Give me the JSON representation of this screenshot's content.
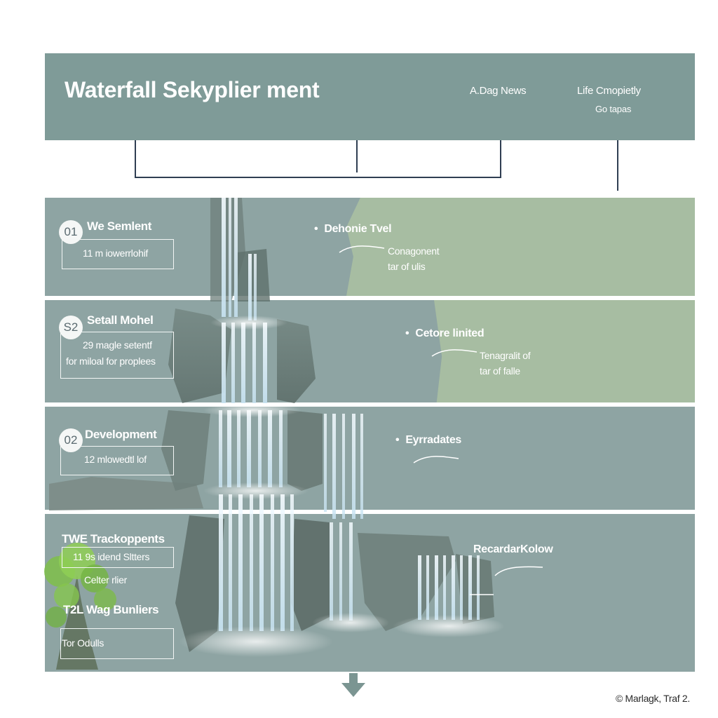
{
  "header": {
    "title": "Waterfall Sekyplier ment",
    "nav_a": "A.Dag News",
    "nav_b": "Life Cmopietly",
    "nav_b_sub": "Go tapas"
  },
  "bands": [
    {
      "number": "01",
      "heading": "We Semlent",
      "box_lines": [
        "11 m iowerrlohif"
      ],
      "bullet": "Dehonie Tvel",
      "side_lines": [
        "Conagonent",
        "tar of ulis"
      ]
    },
    {
      "number": "S2",
      "heading": "Setall Mohel",
      "box_lines": [
        "29 magle setentf",
        "for miloal for proplees"
      ],
      "bullet": "Cetore linited",
      "side_lines": [
        "Tenagralit of",
        "tar of falle"
      ]
    },
    {
      "number": "02",
      "heading": "Development",
      "box_lines": [
        "12 mlowedtl lof"
      ],
      "bullet": "Eyrradates",
      "side_lines": []
    },
    {
      "heading": "TWE Trackoppents",
      "box_line": "11 9s idend Sltters",
      "sub": "Celter rlier",
      "heading2": "T2L Wag Bunliers",
      "box2_line": "Tor Odulls",
      "right_heading": "RecardarKolow"
    }
  ],
  "footer": "© Marlagk, Traf 2.",
  "colors": {
    "header_bg": "#7f9b98",
    "band_bg": "#8ea4a3",
    "green_accent": "#a7bda2",
    "connector": "#2f3e52"
  },
  "icons": [
    "waterfall-illustration",
    "down-arrow-icon",
    "swoosh-line-icon"
  ]
}
